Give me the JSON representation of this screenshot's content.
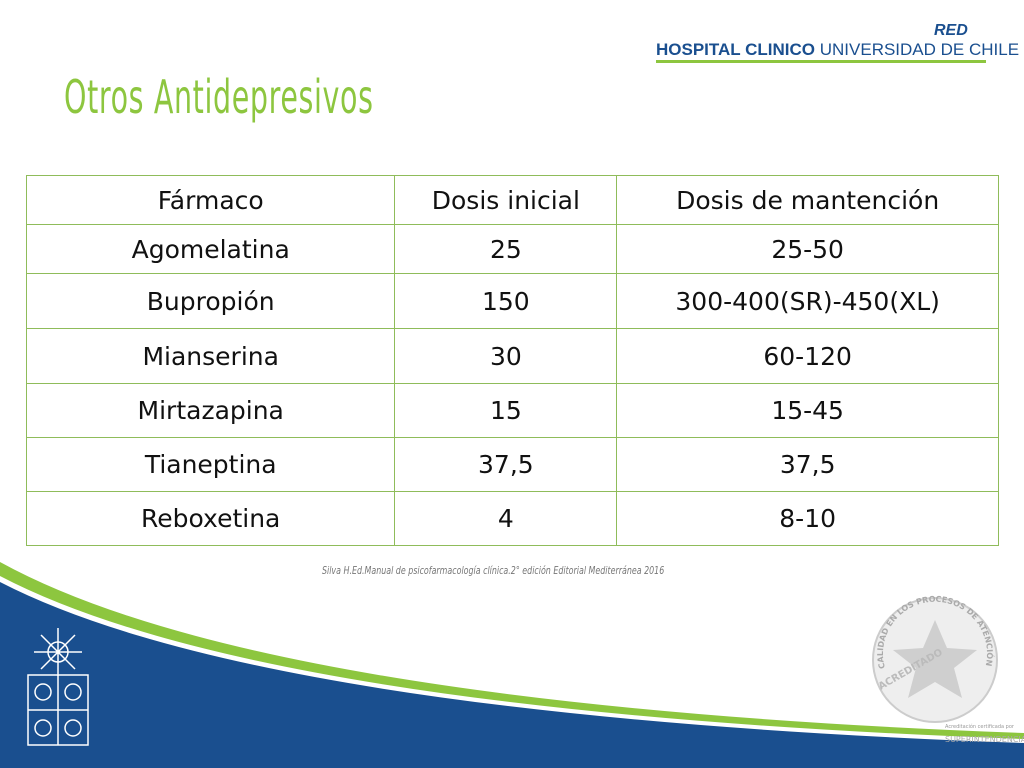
{
  "header": {
    "network": "RED",
    "hospital_bold": "HOSPITAL CLINICO",
    "hospital_rest": "UNIVERSIDAD DE CHILE"
  },
  "title": "Otros Antidepresivos",
  "table": {
    "columns": [
      "Fármaco",
      "Dosis inicial",
      "Dosis de mantención"
    ],
    "rows": [
      [
        "Agomelatina",
        "25",
        "25-50"
      ],
      [
        "Bupropión",
        "150",
        "300-400(SR)-450(XL)"
      ],
      [
        "Mianserina",
        "30",
        "60-120"
      ],
      [
        "Mirtazapina",
        "15",
        "15-45"
      ],
      [
        "Tianeptina",
        "37,5",
        "37,5"
      ],
      [
        "Reboxetina",
        "4",
        "8-10"
      ]
    ]
  },
  "citation": "Silva H.Ed.Manual de psicofarmacología clínica.2°  edición Editorial Mediterránea 2016",
  "badge": {
    "ring": "CALIDAD EN LOS PROCESOS DE ATENCIÓN EN SALUD",
    "center": "ACREDITADO",
    "certified": "Acreditación certificada por",
    "agency": "SUPERINTENDENCIA DE SALUD"
  }
}
